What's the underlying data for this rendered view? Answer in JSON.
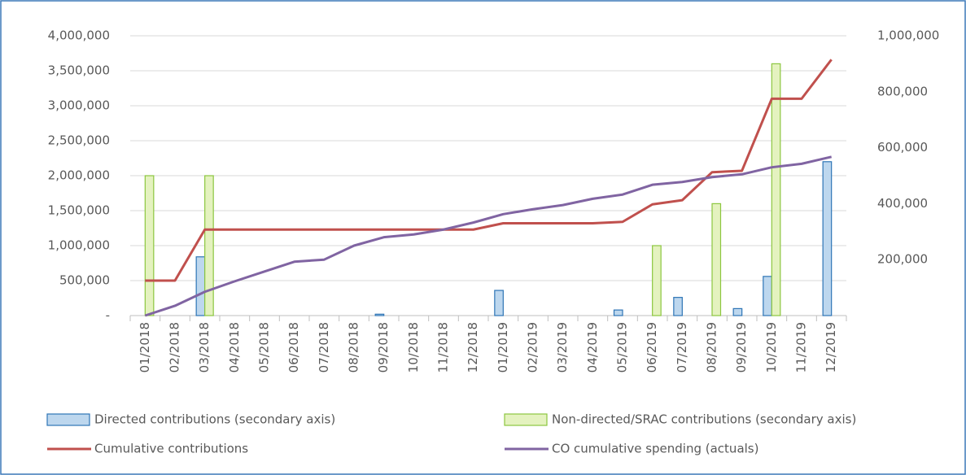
{
  "chart_data": {
    "type": "bar_line",
    "categories": [
      "01/2018",
      "02/2018",
      "03/2018",
      "04/2018",
      "05/2018",
      "06/2018",
      "07/2018",
      "08/2018",
      "09/2018",
      "10/2018",
      "11/2018",
      "12/2018",
      "01/2019",
      "02/2019",
      "03/2019",
      "04/2019",
      "05/2019",
      "06/2019",
      "07/2019",
      "08/2019",
      "09/2019",
      "10/2019",
      "11/2019",
      "12/2019"
    ],
    "series": [
      {
        "name": "Directed contributions (secondary axis)",
        "kind": "bar",
        "axis": "y2",
        "color": "#bdd7ee",
        "stroke": "#2e75b6",
        "values": [
          0,
          0,
          210000,
          0,
          0,
          0,
          0,
          0,
          5000,
          0,
          0,
          0,
          90000,
          0,
          0,
          0,
          20000,
          0,
          65000,
          0,
          25000,
          140000,
          0,
          550000
        ]
      },
      {
        "name": "Non-directed/SRAC contributions (secondary axis)",
        "kind": "bar",
        "axis": "y2",
        "color": "#e4f2bf",
        "stroke": "#8cc63f",
        "values": [
          500000,
          0,
          500000,
          0,
          0,
          0,
          0,
          0,
          0,
          0,
          0,
          0,
          0,
          0,
          0,
          0,
          0,
          250000,
          0,
          400000,
          0,
          900000,
          0,
          0
        ]
      },
      {
        "name": "Cumulative contributions",
        "kind": "line",
        "color": "#c0504d",
        "values": [
          500000,
          500000,
          1230000,
          1230000,
          1230000,
          1230000,
          1230000,
          1230000,
          1230000,
          1230000,
          1230000,
          1230000,
          1320000,
          1320000,
          1320000,
          1320000,
          1340000,
          1590000,
          1650000,
          2050000,
          2070000,
          3100000,
          3100000,
          3660000
        ]
      },
      {
        "name": "CO cumulative spending (actuals)",
        "kind": "line",
        "color": "#8064a2",
        "values": [
          0,
          140000,
          340000,
          490000,
          630000,
          770000,
          800000,
          1000000,
          1120000,
          1160000,
          1230000,
          1330000,
          1450000,
          1520000,
          1580000,
          1670000,
          1730000,
          1870000,
          1910000,
          1980000,
          2020000,
          2120000,
          2170000,
          2270000
        ]
      }
    ],
    "ylim": [
      0,
      4000000
    ],
    "yticks": [
      {
        "value": 0,
        "label": "-"
      },
      {
        "value": 500000,
        "label": "500,000"
      },
      {
        "value": 1000000,
        "label": "1,000,000"
      },
      {
        "value": 1500000,
        "label": "1,500,000"
      },
      {
        "value": 2000000,
        "label": "2,000,000"
      },
      {
        "value": 2500000,
        "label": "2,500,000"
      },
      {
        "value": 3000000,
        "label": "3,000,000"
      },
      {
        "value": 3500000,
        "label": "3,500,000"
      },
      {
        "value": 4000000,
        "label": "4,000,000"
      }
    ],
    "y2lim": [
      0,
      1000000
    ],
    "y2ticks": [
      {
        "value": 200000,
        "label": "200,000"
      },
      {
        "value": 400000,
        "label": "400,000"
      },
      {
        "value": 600000,
        "label": "600,000"
      },
      {
        "value": 800000,
        "label": "800,000"
      },
      {
        "value": 1000000,
        "label": "1,000,000"
      }
    ],
    "grid": true
  }
}
